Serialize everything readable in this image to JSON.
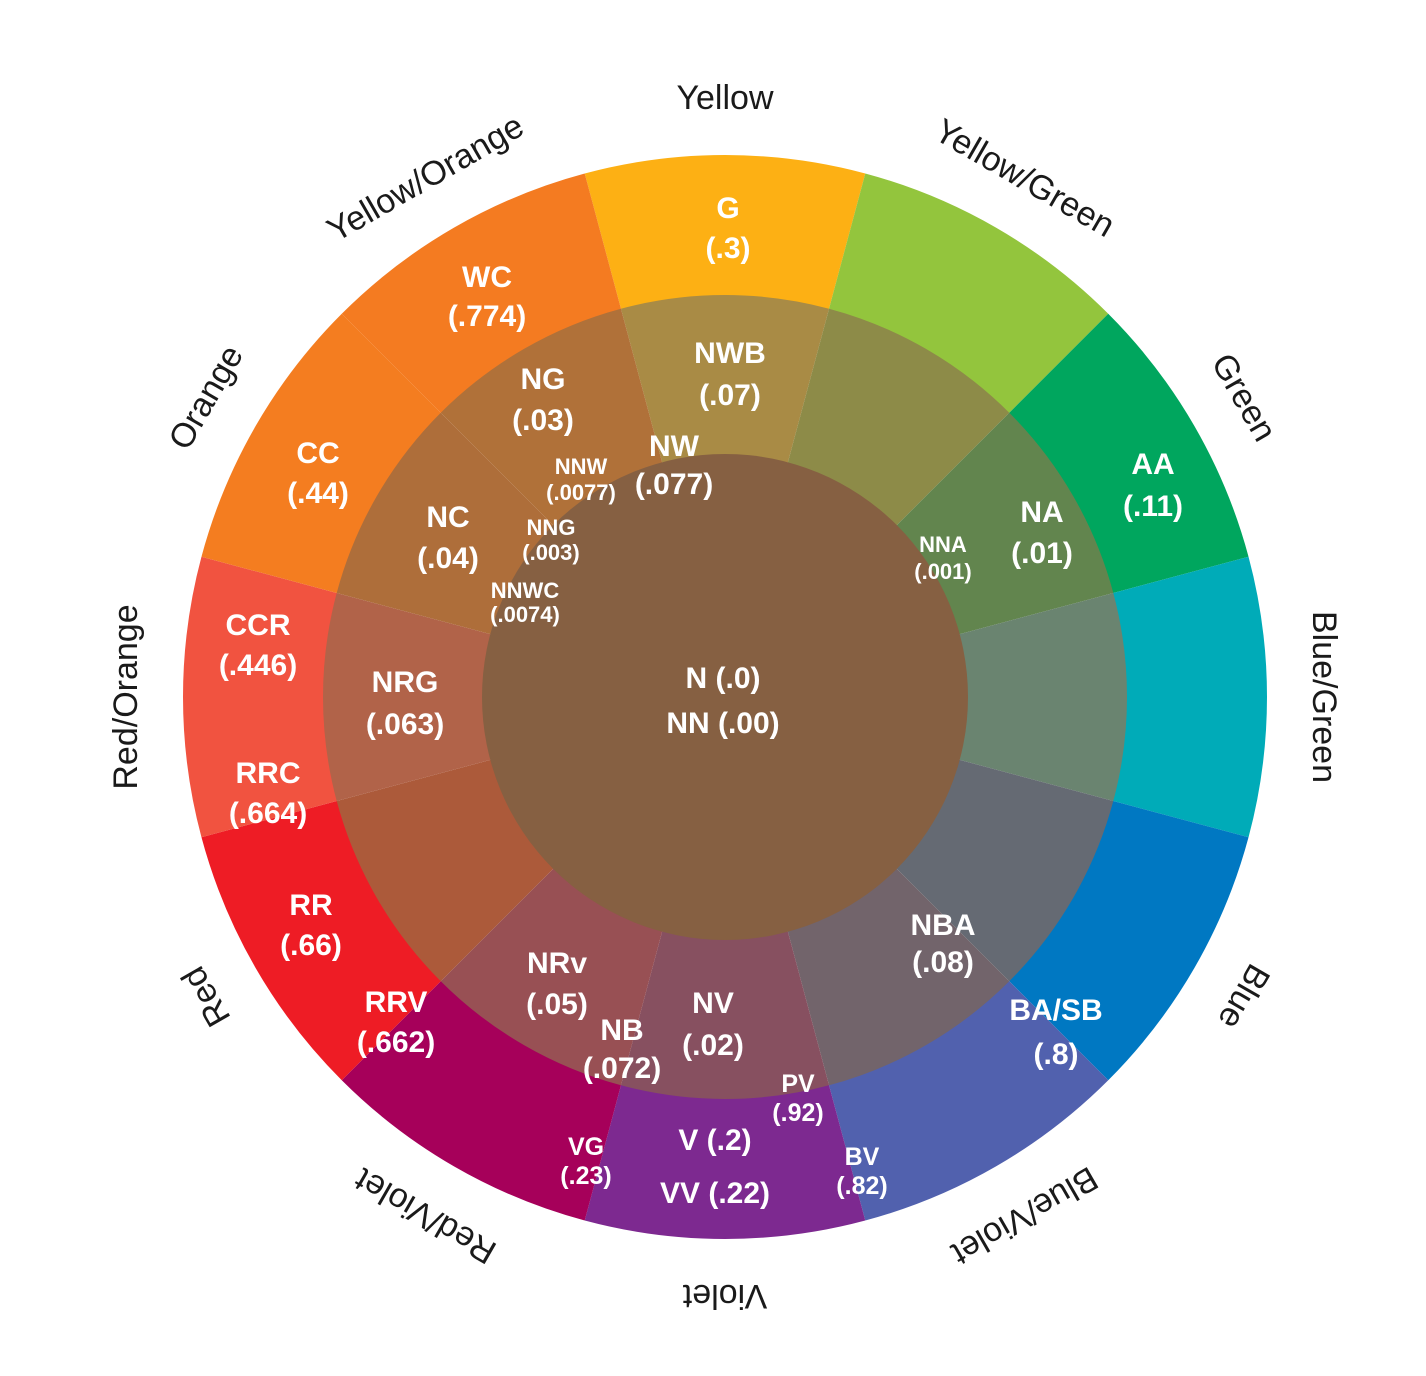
{
  "hues": [
    {
      "name": "Yellow",
      "outer": "#FDB014",
      "middle": "#A98B45"
    },
    {
      "name": "Yellow/Green",
      "outer": "#93C53D",
      "middle": "#8D8B48"
    },
    {
      "name": "Green",
      "outer": "#00A65E",
      "middle": "#62854E"
    },
    {
      "name": "Blue/Green",
      "outer": "#00ABB8",
      "middle": "#6A8470"
    },
    {
      "name": "Blue",
      "outer": "#0078C2",
      "middle": "#656A73"
    },
    {
      "name": "Blue/Violet",
      "outer": "#5161AE",
      "middle": "#72646B"
    },
    {
      "name": "Violet",
      "outer": "#7D2990",
      "middle": "#875060"
    },
    {
      "name": "Red/Violet",
      "outer": "#A6005A",
      "middle": "#985054"
    },
    {
      "name": "Red",
      "outer": "#EE1C25",
      "middle": "#AC5A3A"
    },
    {
      "name": "Red/Orange",
      "outer": "#F15340",
      "middle": "#B16349"
    },
    {
      "name": "Orange",
      "outer": "#F47D20",
      "middle": "#AE6E3A"
    },
    {
      "name": "Yellow/Orange",
      "outer": "#F47B21",
      "middle": "#B07139"
    }
  ],
  "center_color": "#866042",
  "outer_labels": {
    "G": [
      "G",
      "(.3)"
    ],
    "WC": [
      "WC",
      "(.774)"
    ],
    "CC": [
      "CC",
      "(.44)"
    ],
    "CCR": [
      "CCR",
      "(.446)"
    ],
    "RRC": [
      "RRC",
      "(.664)"
    ],
    "RR": [
      "RR",
      "(.66)"
    ],
    "RRV": [
      "RRV",
      "(.662)"
    ],
    "VG": [
      "VG",
      "(.23)"
    ],
    "V": "V (.2)",
    "VV": "VV (.22)",
    "PV": [
      "PV",
      "(.92)"
    ],
    "BV": [
      "BV",
      "(.82)"
    ],
    "BASB": [
      "BA/SB",
      "(.8)"
    ],
    "AA": [
      "AA",
      "(.11)"
    ]
  },
  "middle_labels": {
    "NWB": [
      "NWB",
      "(.07)"
    ],
    "NG": [
      "NG",
      "(.03)"
    ],
    "NC": [
      "NC",
      "(.04)"
    ],
    "NRG": [
      "NRG",
      "(.063)"
    ],
    "NRv": [
      "NRv",
      "(.05)"
    ],
    "NB": [
      "NB",
      "(.072)"
    ],
    "NV": [
      "NV",
      "(.02)"
    ],
    "NBA": [
      "NBA",
      "(.08)"
    ],
    "NA": [
      "NA",
      "(.01)"
    ],
    "NW": [
      "NW",
      "(.077)"
    ],
    "NNW": [
      "NNW",
      "(.0077)"
    ],
    "NNG": [
      "NNG",
      "(.003)"
    ],
    "NNWC": [
      "NNWC",
      "(.0074)"
    ],
    "NNA": [
      "NNA",
      "(.001)"
    ]
  },
  "center_labels": {
    "N": "N (.0)",
    "NN": "NN (.00)"
  }
}
